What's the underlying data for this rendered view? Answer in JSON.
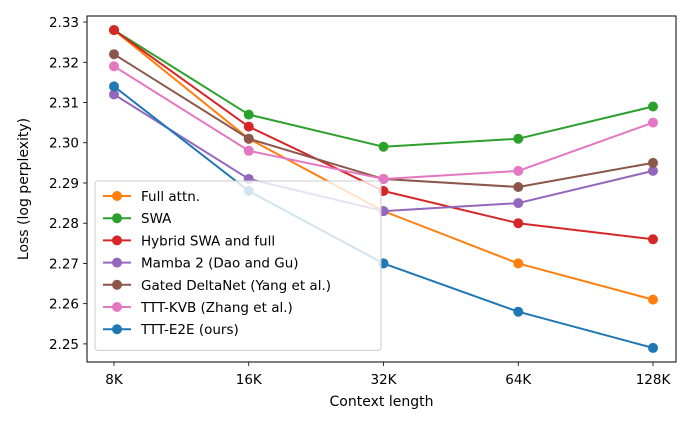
{
  "chart_data": {
    "type": "line",
    "title": "",
    "xlabel": "Context length",
    "ylabel": "Loss (log perplexity)",
    "categories": [
      "8K",
      "16K",
      "32K",
      "64K",
      "128K"
    ],
    "ylim": [
      2.2455,
      2.3315
    ],
    "yticks": [
      2.25,
      2.26,
      2.27,
      2.28,
      2.29,
      2.3,
      2.31,
      2.32,
      2.33
    ],
    "ytick_labels": [
      "2.25",
      "2.26",
      "2.27",
      "2.28",
      "2.29",
      "2.30",
      "2.31",
      "2.32",
      "2.33"
    ],
    "grid": false,
    "legend_position": "lower-left",
    "series": [
      {
        "name": "Full attn.",
        "color": "#ff7f0e",
        "values": [
          2.328,
          2.301,
          2.283,
          2.27,
          2.261
        ]
      },
      {
        "name": "SWA",
        "color": "#2ca02c",
        "values": [
          2.328,
          2.307,
          2.299,
          2.301,
          2.309
        ]
      },
      {
        "name": "Hybrid SWA and full",
        "color": "#d62728",
        "values": [
          2.328,
          2.304,
          2.288,
          2.28,
          2.276
        ]
      },
      {
        "name": "Mamba 2 (Dao and Gu)",
        "color": "#9467bd",
        "values": [
          2.312,
          2.291,
          2.283,
          2.285,
          2.293
        ]
      },
      {
        "name": "Gated DeltaNet (Yang et al.)",
        "color": "#8c564b",
        "values": [
          2.322,
          2.301,
          2.291,
          2.289,
          2.295
        ]
      },
      {
        "name": "TTT-KVB (Zhang et al.)",
        "color": "#e377c2",
        "values": [
          2.319,
          2.298,
          2.291,
          2.293,
          2.305
        ]
      },
      {
        "name": "TTT-E2E (ours)",
        "color": "#1f77b4",
        "values": [
          2.314,
          2.288,
          2.27,
          2.258,
          2.249
        ]
      }
    ]
  }
}
